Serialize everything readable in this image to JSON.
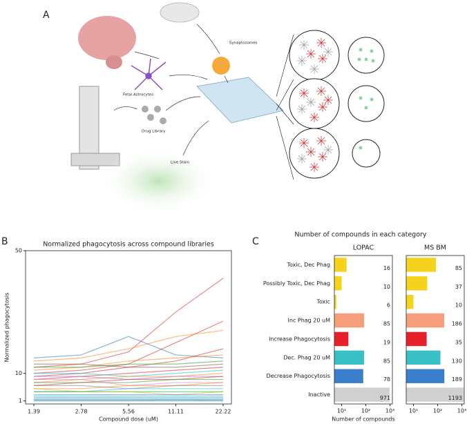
{
  "panel_a": {
    "label": "A",
    "texts": [
      "Synaptosomes",
      "Fetal Astrocytes",
      "Drug Library",
      "Live Stain"
    ]
  },
  "chart_data": [
    {
      "type": "line",
      "panel": "B",
      "title": "Normalized phagocytosis across compound libraries",
      "xlabel": "Compound dose (uM)",
      "ylabel": "Normalized phagocytosis",
      "categories": [
        "1.39",
        "2.78",
        "5.56",
        "11.11",
        "22.22"
      ],
      "ylim": [
        0,
        50
      ],
      "yticks": [
        1,
        10,
        50
      ],
      "series": [
        {
          "color": "#d62728",
          "values": [
            12,
            13,
            17,
            30,
            41
          ]
        },
        {
          "color": "#d62728",
          "values": [
            10,
            11,
            13,
            20,
            27
          ]
        },
        {
          "color": "#ff7f0e",
          "values": [
            14,
            15,
            18,
            22,
            24
          ]
        },
        {
          "color": "#1f77b4",
          "values": [
            15,
            16,
            22,
            16,
            15
          ]
        },
        {
          "color": "#d62728",
          "values": [
            9,
            10,
            12,
            14,
            18
          ]
        },
        {
          "color": "#ff7f0e",
          "values": [
            11,
            12,
            14,
            15,
            16
          ]
        },
        {
          "color": "#2ca02c",
          "values": [
            12,
            12,
            13,
            13,
            14
          ]
        },
        {
          "color": "#8c564b",
          "values": [
            13,
            13,
            12,
            12,
            13
          ]
        },
        {
          "color": "#d62728",
          "values": [
            8,
            9,
            10,
            11,
            12
          ]
        },
        {
          "color": "#17becf",
          "values": [
            10,
            10,
            9,
            10,
            11
          ]
        },
        {
          "color": "#ff7f0e",
          "values": [
            7,
            8,
            9,
            9,
            10
          ]
        },
        {
          "color": "#9467bd",
          "values": [
            9,
            9,
            8,
            9,
            9
          ]
        },
        {
          "color": "#d62728",
          "values": [
            6,
            7,
            8,
            8,
            9
          ]
        },
        {
          "color": "#2ca02c",
          "values": [
            7,
            7,
            7,
            8,
            8
          ]
        },
        {
          "color": "#e377c2",
          "values": [
            8,
            8,
            6,
            7,
            7
          ]
        },
        {
          "color": "#ff7f0e",
          "values": [
            5,
            5,
            6,
            6,
            7
          ]
        },
        {
          "color": "#7f7f7f",
          "values": [
            6,
            6,
            5,
            6,
            6
          ]
        },
        {
          "color": "#17becf",
          "values": [
            4,
            4,
            5,
            5,
            5
          ]
        },
        {
          "color": "#2ca02c",
          "values": [
            4,
            4,
            4,
            4,
            4
          ]
        },
        {
          "color": "#bcbd22",
          "values": [
            5,
            4,
            4,
            3,
            4
          ]
        },
        {
          "color": "#1f77b4",
          "values": [
            3,
            3,
            3,
            3,
            3
          ]
        },
        {
          "color": "#17becf",
          "values": [
            2.5,
            2.5,
            2.5,
            2.5,
            2.5
          ]
        },
        {
          "color": "#1f77b4",
          "values": [
            2,
            2,
            2,
            2,
            2
          ]
        },
        {
          "color": "#1f77b4",
          "values": [
            1.5,
            1.5,
            1.5,
            1.5,
            1.5
          ]
        },
        {
          "color": "#17becf",
          "values": [
            1.2,
            1.2,
            1.2,
            1.3,
            1.2
          ]
        },
        {
          "color": "#1f77b4",
          "values": [
            1,
            1,
            1,
            1,
            1
          ]
        }
      ]
    },
    {
      "type": "barh",
      "panel": "C",
      "title": "Number of compounds in each category",
      "xlabel": "Number of compounds",
      "log": true,
      "categories": [
        "Toxic, Dec Phag",
        "Possibly Toxic, Dec Phag",
        "Toxic",
        "Inc Phag 20 uM",
        "Increase Phagocytosis",
        "Dec. Phag 20 uM",
        "Decrease Phagocytosis",
        "Inactive"
      ],
      "colors": [
        "#f5d31d",
        "#f5d31d",
        "#f5d31d",
        "#f59f7a",
        "#e8202a",
        "#38c0c4",
        "#3b7fca",
        "#d0d0d0"
      ],
      "xlim": [
        5,
        1250
      ],
      "xticks": [
        {
          "value": 10,
          "label": "10¹"
        },
        {
          "value": 100,
          "label": "10²"
        },
        {
          "value": 1000,
          "label": "10³"
        }
      ],
      "panels": [
        {
          "title": "LOPAC",
          "values": [
            16,
            10,
            6,
            85,
            19,
            85,
            78,
            971
          ]
        },
        {
          "title": "MS BM",
          "values": [
            85,
            37,
            10,
            186,
            35,
            130,
            189,
            1193
          ]
        }
      ]
    }
  ]
}
